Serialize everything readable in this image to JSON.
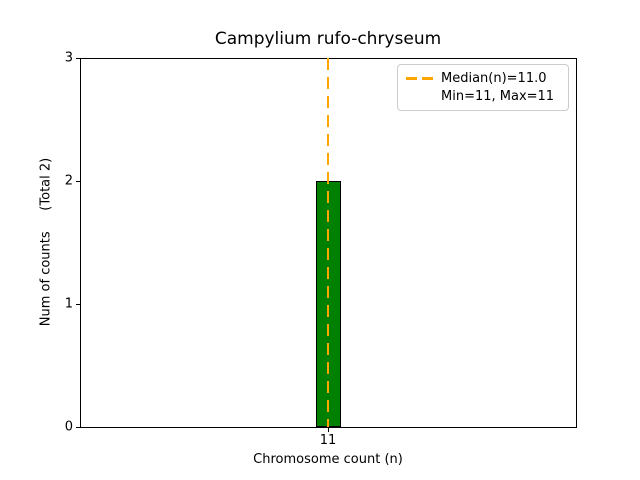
{
  "figure": {
    "background": "#ffffff"
  },
  "chart_data": {
    "type": "bar",
    "title": "Campylium rufo-chryseum",
    "xlabel": "Chromosome count (n)",
    "ylabel": "Num of counts     (Total 2)",
    "categories": [
      "11"
    ],
    "values": [
      2
    ],
    "total": 2,
    "ylim": [
      0,
      3
    ],
    "yticks": [
      0,
      1,
      2,
      3
    ],
    "median": 11.0,
    "min": 11,
    "max": 11,
    "bar_color": "#008000",
    "bar_edge_color": "#000000",
    "median_line_color": "#FFA500",
    "legend_entries": [
      {
        "label": "Median(n)=11.0"
      },
      {
        "label": "Min=11, Max=11"
      }
    ],
    "legend_position": "upper right",
    "grid": false
  }
}
